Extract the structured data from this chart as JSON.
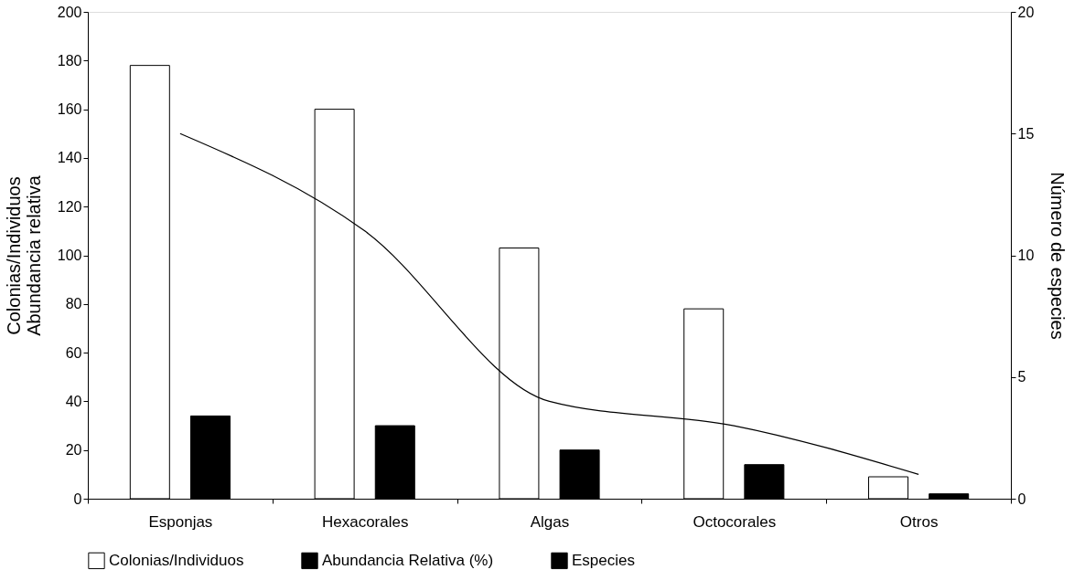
{
  "chart_data": {
    "type": "bar",
    "categories": [
      "Esponjas",
      "Hexacorales",
      "Algas",
      "Octocorales",
      "Otros"
    ],
    "ylabel": "Colonias/Individuos\nAbundancia relativa",
    "y2label": "Número de especies",
    "ylim": [
      0,
      200
    ],
    "yticks": [
      0,
      20,
      40,
      60,
      80,
      100,
      120,
      140,
      160,
      180,
      200
    ],
    "y2lim": [
      0,
      20
    ],
    "y2ticks": [
      0,
      5,
      10,
      15,
      20
    ],
    "grid": false,
    "legend": "bottom",
    "series": [
      {
        "name": "Colonias/Individuos",
        "color": "#ffffff",
        "values": [
          178,
          160,
          103,
          78,
          9
        ]
      },
      {
        "name": "Abundancia Relativa (%)",
        "color": "#000000",
        "values": [
          34,
          30,
          20,
          14,
          2
        ]
      },
      {
        "name": "Especies",
        "color": "#000000",
        "type": "line",
        "axis": "y2",
        "values": [
          15,
          11,
          4,
          3,
          1
        ]
      }
    ]
  }
}
